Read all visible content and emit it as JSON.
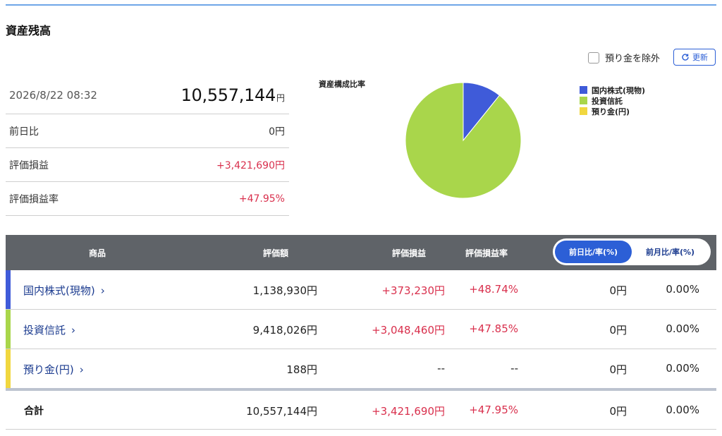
{
  "page": {
    "title": "資産残高"
  },
  "controls": {
    "exclude_label": "預り金を除外",
    "refresh_label": "更新"
  },
  "summary": {
    "date": "2026/8/22 08:32",
    "total_value": "10,557,144",
    "total_unit": "円",
    "rows": [
      {
        "label": "前日比",
        "value": "0円",
        "color": "#333333"
      },
      {
        "label": "評価損益",
        "value": "+3,421,690円",
        "color": "#d9304d"
      },
      {
        "label": "評価損益率",
        "value": "+47.95%",
        "color": "#d9304d"
      }
    ]
  },
  "chart_data": {
    "type": "pie",
    "title": "資産構成比率",
    "categories": [
      "国内株式(現物)",
      "投資信託",
      "預り金(円)"
    ],
    "values": [
      1138930,
      9418026,
      188
    ],
    "colors": [
      "#3f5bd9",
      "#a9d64b",
      "#f1d73f"
    ],
    "legend_position": "right"
  },
  "table": {
    "headers": {
      "product": "商品",
      "value": "評価額",
      "pl": "評価損益",
      "rate": "評価損益率"
    },
    "toggle": {
      "day": "前日比/率(%)",
      "month": "前月比/率(%)",
      "active": "day"
    },
    "rows": [
      {
        "name": "国内株式(現物)",
        "value": "1,138,930円",
        "pl": "+373,230円",
        "rate": "+48.74%",
        "day": "0円",
        "day_rate": "0.00%",
        "color": "#3f5bd9"
      },
      {
        "name": "投資信託",
        "value": "9,418,026円",
        "pl": "+3,048,460円",
        "rate": "+47.85%",
        "day": "0円",
        "day_rate": "0.00%",
        "color": "#a9d64b"
      },
      {
        "name": "預り金(円)",
        "value": "188円",
        "pl": "--",
        "rate": "--",
        "day": "0円",
        "day_rate": "0.00%",
        "color": "#f1d73f"
      }
    ],
    "total": {
      "label": "合計",
      "value": "10,557,144円",
      "pl": "+3,421,690円",
      "rate": "+47.95%",
      "day": "0円",
      "day_rate": "0.00%"
    },
    "chevron": "›"
  }
}
